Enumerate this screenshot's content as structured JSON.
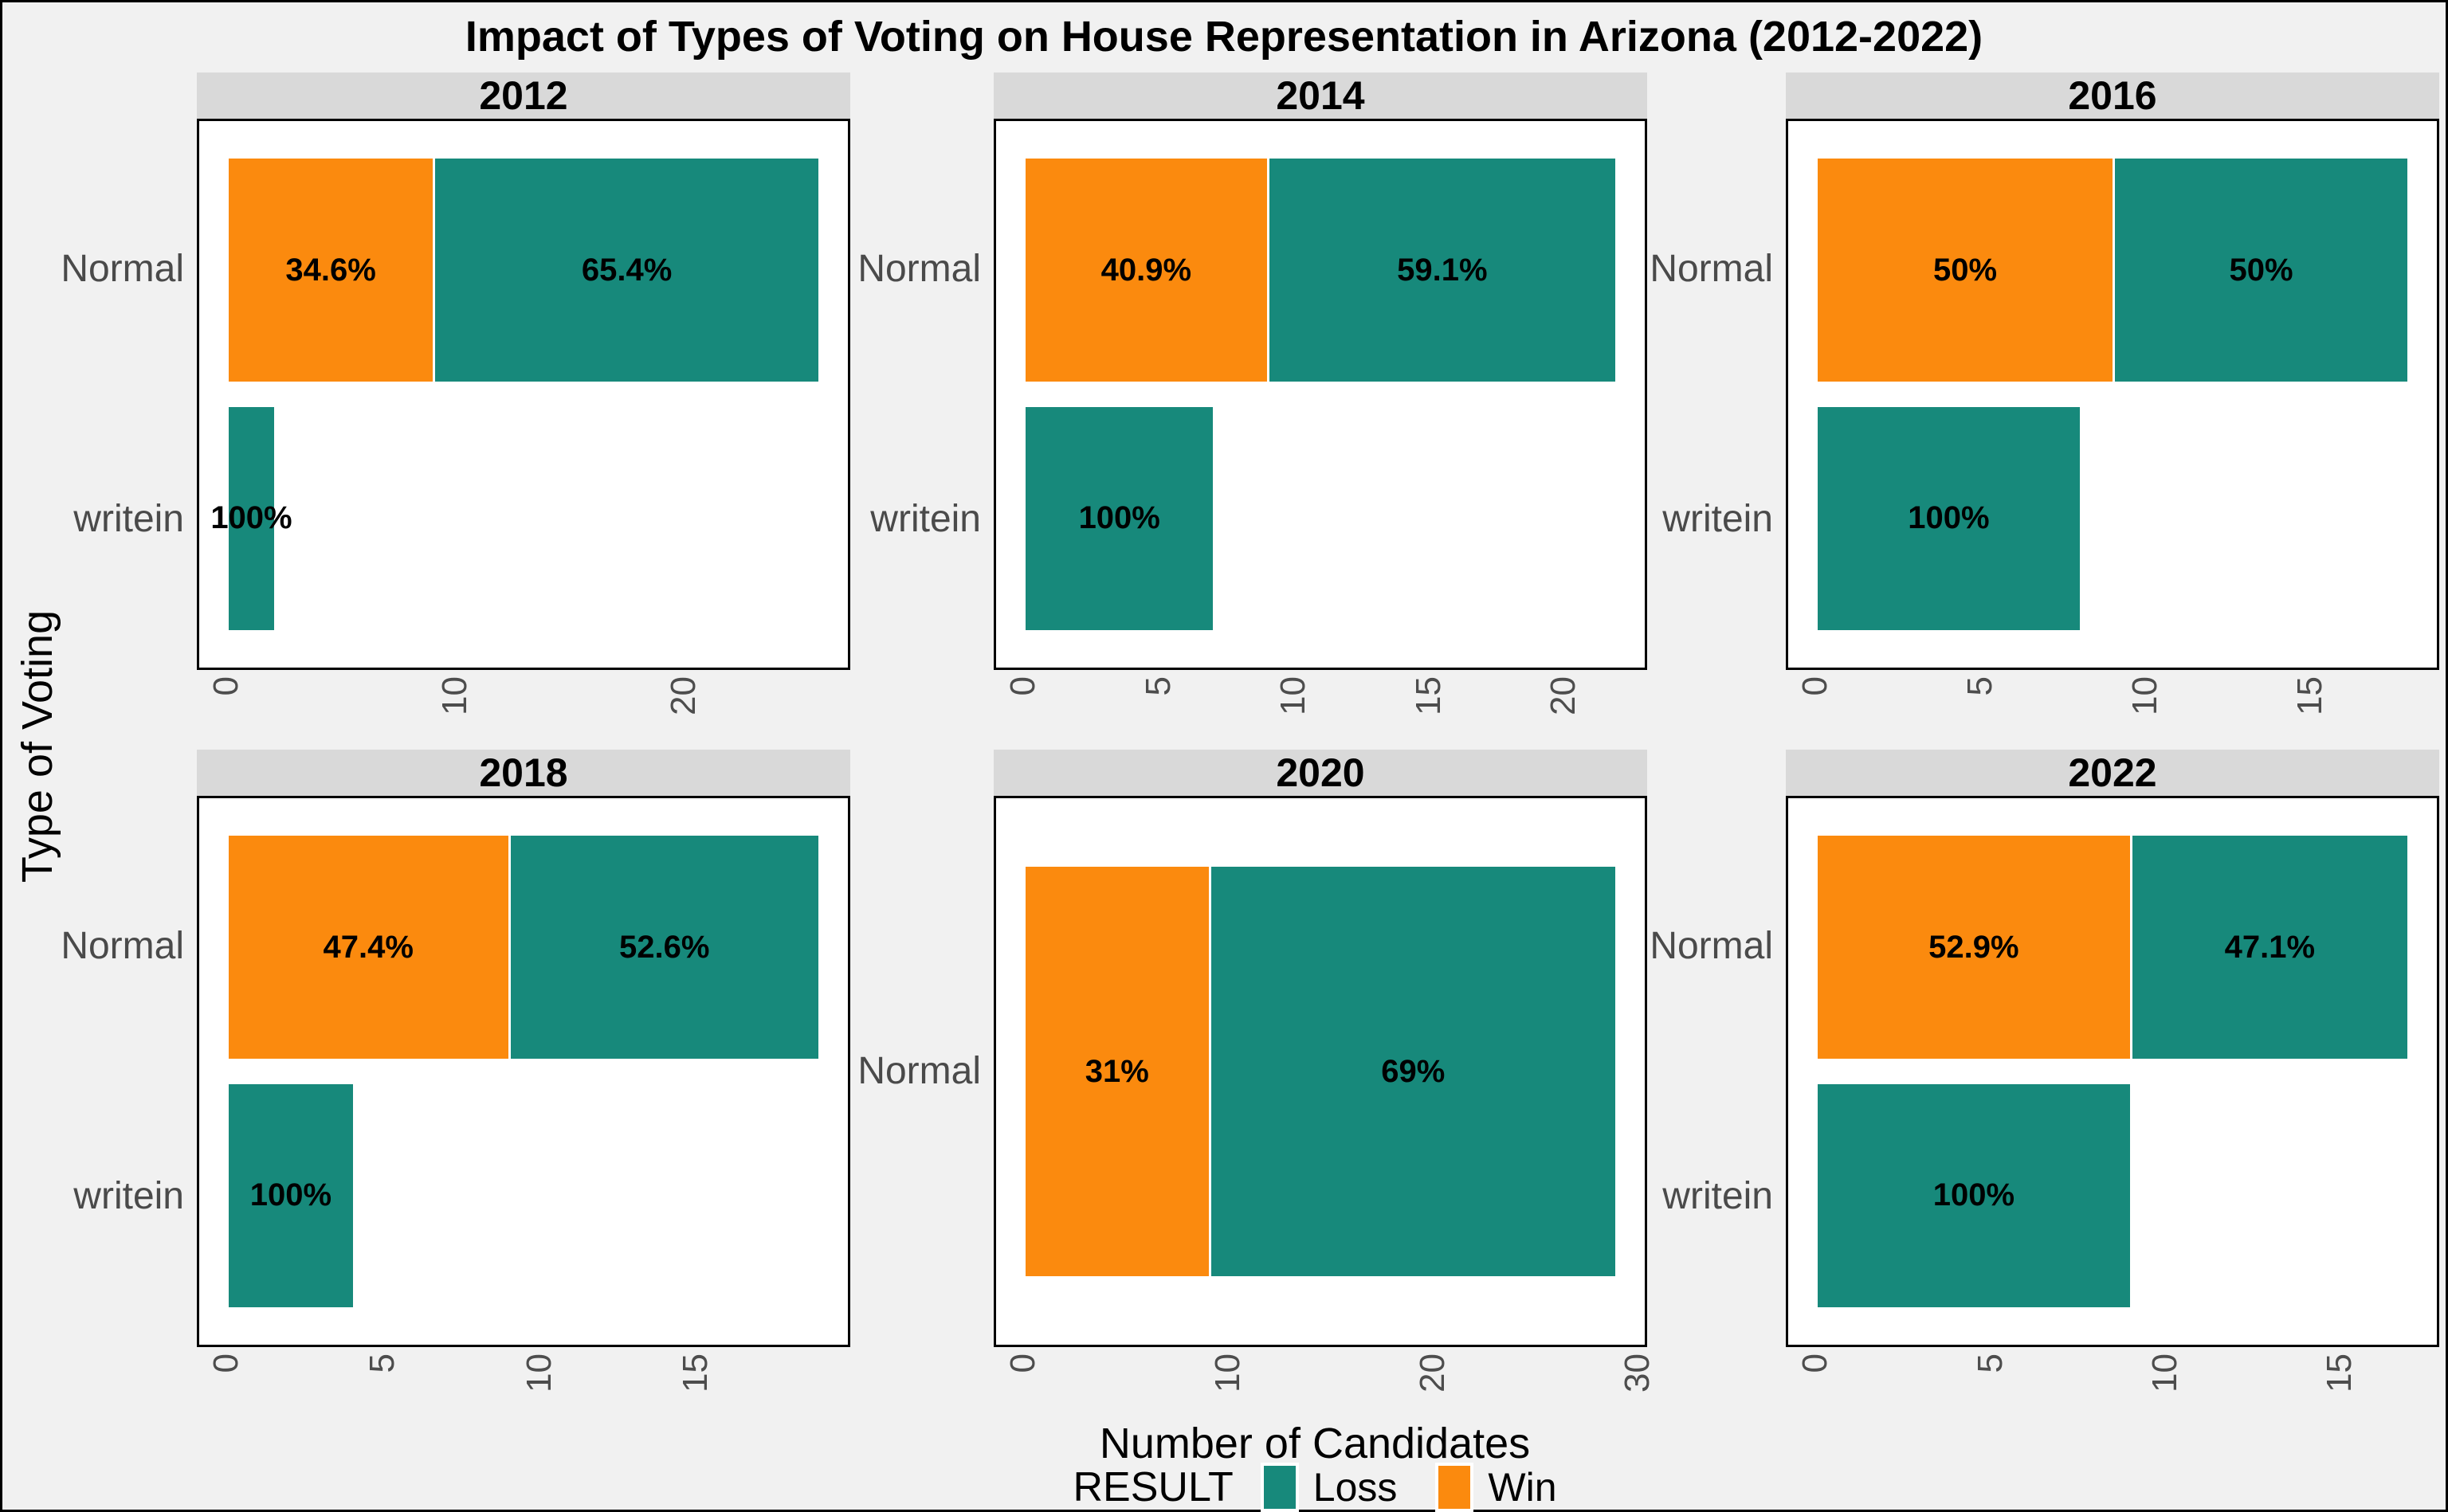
{
  "chart_data": {
    "type": "bar",
    "orientation": "horizontal-stacked",
    "title": "Impact of Types of Voting on House Representation in Arizona (2012-2022)",
    "xlabel": "Number of Candidates",
    "ylabel": "Type of Voting",
    "grid": false,
    "colors": {
      "Win": "#FB8A0E",
      "Loss": "#17897B"
    },
    "legend": {
      "title": "RESULT",
      "position": "bottom",
      "entries": [
        {
          "label": "Loss",
          "color": "#17897B"
        },
        {
          "label": "Win",
          "color": "#FB8A0E"
        }
      ]
    },
    "facets": [
      {
        "year": "2012",
        "xmax": 26,
        "ticks": [
          0,
          10,
          20
        ],
        "rows": [
          {
            "category": "Normal",
            "segments": [
              {
                "result": "Win",
                "value": 9,
                "pct_label": "34.6%"
              },
              {
                "result": "Loss",
                "value": 17,
                "pct_label": "65.4%"
              }
            ]
          },
          {
            "category": "writein",
            "segments": [
              {
                "result": "Loss",
                "value": 2,
                "pct_label": "100%"
              }
            ]
          }
        ]
      },
      {
        "year": "2014",
        "xmax": 22,
        "ticks": [
          0,
          5,
          10,
          15,
          20
        ],
        "rows": [
          {
            "category": "Normal",
            "segments": [
              {
                "result": "Win",
                "value": 9,
                "pct_label": "40.9%"
              },
              {
                "result": "Loss",
                "value": 13,
                "pct_label": "59.1%"
              }
            ]
          },
          {
            "category": "writein",
            "segments": [
              {
                "result": "Loss",
                "value": 7,
                "pct_label": "100%"
              }
            ]
          }
        ]
      },
      {
        "year": "2016",
        "xmax": 18,
        "ticks": [
          0,
          5,
          10,
          15
        ],
        "rows": [
          {
            "category": "Normal",
            "segments": [
              {
                "result": "Win",
                "value": 9,
                "pct_label": "50%"
              },
              {
                "result": "Loss",
                "value": 9,
                "pct_label": "50%"
              }
            ]
          },
          {
            "category": "writein",
            "segments": [
              {
                "result": "Loss",
                "value": 8,
                "pct_label": "100%"
              }
            ]
          }
        ]
      },
      {
        "year": "2018",
        "xmax": 19,
        "ticks": [
          0,
          5,
          10,
          15
        ],
        "rows": [
          {
            "category": "Normal",
            "segments": [
              {
                "result": "Win",
                "value": 9,
                "pct_label": "47.4%"
              },
              {
                "result": "Loss",
                "value": 10,
                "pct_label": "52.6%"
              }
            ]
          },
          {
            "category": "writein",
            "segments": [
              {
                "result": "Loss",
                "value": 4,
                "pct_label": "100%"
              }
            ]
          }
        ]
      },
      {
        "year": "2020",
        "xmax": 29,
        "ticks": [
          0,
          10,
          20,
          30
        ],
        "rows": [
          {
            "category": "Normal",
            "segments": [
              {
                "result": "Win",
                "value": 9,
                "pct_label": "31%"
              },
              {
                "result": "Loss",
                "value": 20,
                "pct_label": "69%"
              }
            ]
          }
        ]
      },
      {
        "year": "2022",
        "xmax": 17,
        "ticks": [
          0,
          5,
          10,
          15
        ],
        "rows": [
          {
            "category": "Normal",
            "segments": [
              {
                "result": "Win",
                "value": 9,
                "pct_label": "52.9%"
              },
              {
                "result": "Loss",
                "value": 8,
                "pct_label": "47.1%"
              }
            ]
          },
          {
            "category": "writein",
            "segments": [
              {
                "result": "Loss",
                "value": 9,
                "pct_label": "100%"
              }
            ]
          }
        ]
      }
    ]
  }
}
